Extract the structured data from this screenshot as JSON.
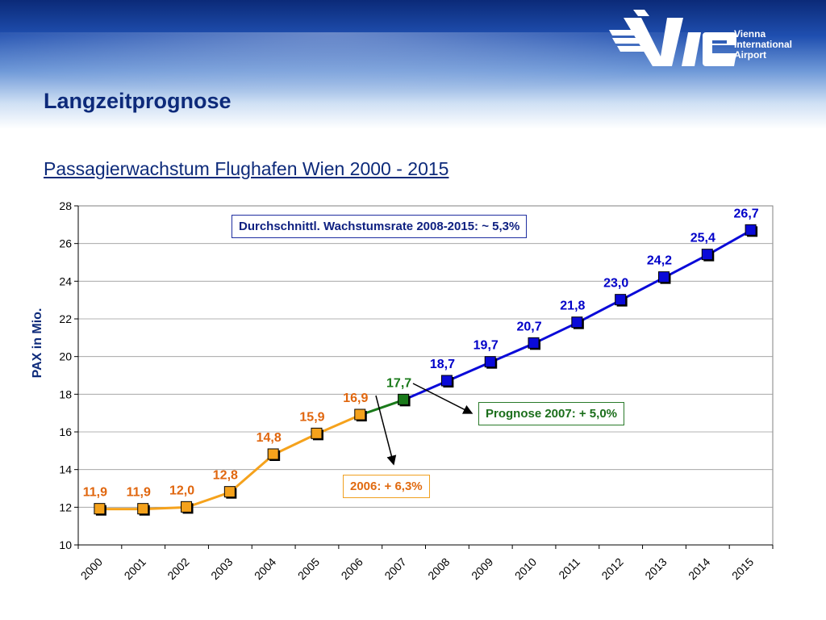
{
  "header": {
    "page_title": "Langzeitprognose",
    "logo_lines": [
      "Vienna",
      "International",
      "Airport"
    ]
  },
  "colors": {
    "actual": "#f5a21c",
    "actual_label": "#e0660e",
    "estimate_2007": "#1a7a1a",
    "forecast": "#0a0ad8",
    "forecast_label": "#0000c8",
    "title_blue": "#0d2a7a"
  },
  "chart_data": {
    "type": "line",
    "title": "Passagierwachstum Flughafen Wien 2000 - 2015",
    "ylabel": "PAX in Mio.",
    "xlabel": "",
    "ylim": [
      10,
      28
    ],
    "yticks": [
      10,
      12,
      14,
      16,
      18,
      20,
      22,
      24,
      26,
      28
    ],
    "grid": true,
    "categories": [
      "2000",
      "2001",
      "2002",
      "2003",
      "2004",
      "2005",
      "2006",
      "2007",
      "2008",
      "2009",
      "2010",
      "2011",
      "2012",
      "2013",
      "2014",
      "2015"
    ],
    "series": [
      {
        "role": "actual",
        "x": [
          "2000",
          "2001",
          "2002",
          "2003",
          "2004",
          "2005",
          "2006"
        ],
        "values": [
          11.9,
          11.9,
          12.0,
          12.8,
          14.8,
          15.9,
          16.9
        ],
        "labels": [
          "11,9",
          "11,9",
          "12,0",
          "12,8",
          "14,8",
          "15,9",
          "16,9"
        ]
      },
      {
        "role": "estimate",
        "x": [
          "2007"
        ],
        "values": [
          17.7
        ],
        "labels": [
          "17,7"
        ]
      },
      {
        "role": "forecast",
        "x": [
          "2008",
          "2009",
          "2010",
          "2011",
          "2012",
          "2013",
          "2014",
          "2015"
        ],
        "values": [
          18.7,
          19.7,
          20.7,
          21.8,
          23.0,
          24.2,
          25.4,
          26.7
        ],
        "labels": [
          "18,7",
          "19,7",
          "20,7",
          "21,8",
          "23,0",
          "24,2",
          "25,4",
          "26,7"
        ]
      }
    ],
    "annotations": {
      "average": "Durchschnittl. Wachstumsrate 2008-2015: ~ 5,3%",
      "prognose_2007": "Prognose 2007: + 5,0%",
      "growth_2006": "2006: + 6,3%"
    }
  }
}
